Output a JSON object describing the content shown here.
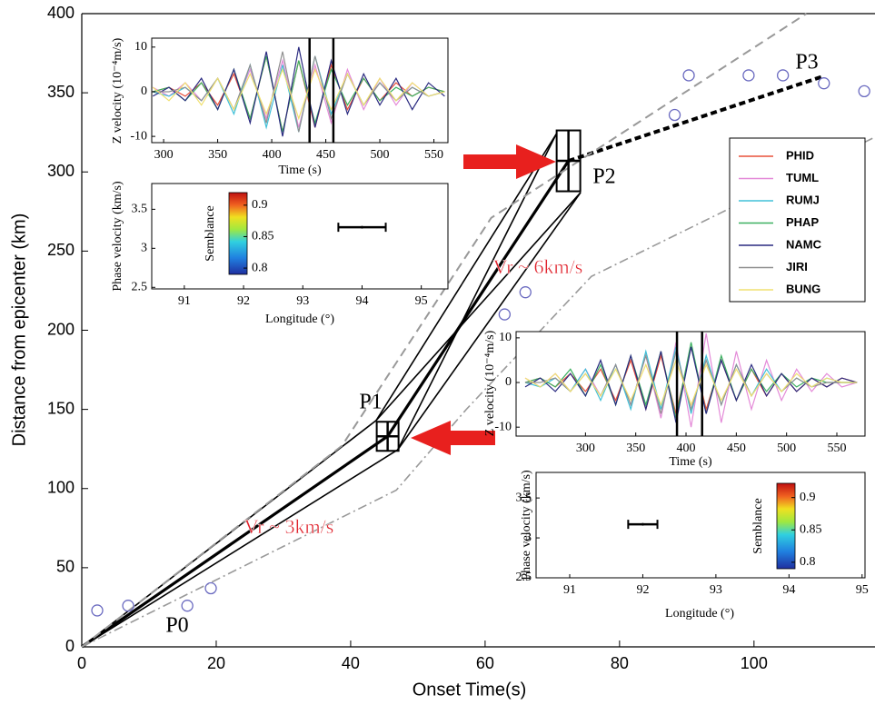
{
  "chart_data": [
    {
      "type": "line",
      "xlabel": "Onset Time(s)",
      "ylabel": "Distance from epicenter (km)",
      "xlim": [
        0,
        118
      ],
      "ylim": [
        0,
        400
      ],
      "xticks": [
        0,
        20,
        40,
        60,
        80,
        100
      ],
      "yticks": [
        0,
        50,
        100,
        150,
        200,
        250,
        300,
        350,
        400
      ],
      "points": {
        "color": "#6a6ac0",
        "x": [
          2.3,
          6.9,
          15.7,
          19.2,
          62.9,
          66,
          88.2,
          90.3,
          99.2,
          104.3,
          110.4,
          116.4
        ],
        "y": [
          23,
          26,
          26,
          37,
          210,
          224,
          336,
          361,
          361,
          361,
          356,
          351
        ]
      },
      "series": [
        {
          "color": "#000000",
          "style": "thick",
          "x": [
            0,
            45.5,
            72.4
          ],
          "values": [
            0,
            133,
            307
          ]
        },
        {
          "color": "#000000",
          "style": "bold-dashed",
          "x": [
            72.4,
            110
          ],
          "values": [
            307,
            360
          ]
        },
        {
          "color": "#000000",
          "style": "thin",
          "x": [
            0,
            43.8,
            74.2
          ],
          "values": [
            0,
            143,
            287
          ]
        },
        {
          "color": "#000000",
          "style": "thin",
          "x": [
            0,
            47,
            70.6
          ],
          "values": [
            0,
            124.5,
            324
          ]
        },
        {
          "color": "#000000",
          "style": "thin",
          "x": [
            43.8,
            70.6
          ],
          "values": [
            143,
            324
          ]
        },
        {
          "color": "#000000",
          "style": "thin",
          "x": [
            47,
            74.2
          ],
          "values": [
            124.5,
            287
          ]
        },
        {
          "color": "#999999",
          "style": "dashed",
          "x": [
            0,
            38.7,
            60.9,
            107.8
          ],
          "values": [
            0,
            127,
            271,
            400
          ]
        },
        {
          "color": "#999999",
          "style": "dash-dot",
          "x": [
            0,
            46.8,
            57.2,
            75.8,
            118
          ],
          "values": [
            0,
            99,
            150,
            234,
            322
          ]
        }
      ],
      "annotations": [
        {
          "text": "P0"
        },
        {
          "text": "P1"
        },
        {
          "text": "P2"
        },
        {
          "text": "P3"
        },
        {
          "text": "Vr ~ 3km/s",
          "color": "#e0202a"
        },
        {
          "text": "Vr ~ 6km/s",
          "color": "#e0202a"
        }
      ]
    },
    {
      "type": "line",
      "xlabel": "Time (s)",
      "ylabel": "Z velocity (10⁻⁴m/s)",
      "xlim": [
        289,
        563
      ],
      "ylim": [
        -11.4,
        12
      ],
      "xticks": [
        300,
        350,
        400,
        450,
        500,
        550
      ],
      "yticks": [
        -10,
        0,
        10
      ],
      "window": [
        435,
        457
      ],
      "x": [
        290,
        305,
        320,
        335,
        350,
        365,
        380,
        395,
        410,
        425,
        440,
        455,
        470,
        485,
        500,
        515,
        530,
        545,
        560
      ],
      "series": [
        {
          "name": "PHID",
          "color": "#e8503a",
          "values": [
            0,
            1,
            -1,
            2,
            -3,
            4,
            -6,
            8,
            -9,
            7,
            -8,
            6,
            -4,
            3,
            -2,
            2,
            -1,
            1,
            0
          ]
        },
        {
          "name": "TUML",
          "color": "#e48ad8",
          "values": [
            1,
            -1,
            2,
            -2,
            3,
            -4,
            5,
            -6,
            7,
            -8,
            6,
            -7,
            5,
            -4,
            3,
            -3,
            2,
            -1,
            0
          ]
        },
        {
          "name": "RUMJ",
          "color": "#40c0d8",
          "values": [
            0,
            -1,
            1,
            -2,
            3,
            -5,
            6,
            -8,
            6,
            -9,
            8,
            -5,
            4,
            -3,
            2,
            -2,
            1,
            -1,
            0
          ]
        },
        {
          "name": "PHAP",
          "color": "#3cb060",
          "values": [
            0,
            1,
            -2,
            2,
            -4,
            5,
            -6,
            8,
            -9,
            7,
            -7,
            5,
            -3,
            3,
            -2,
            1,
            -1,
            1,
            0
          ]
        },
        {
          "name": "NAMC",
          "color": "#2a2a80",
          "values": [
            -1,
            1,
            -2,
            3,
            -4,
            5,
            -7,
            9,
            -10,
            10,
            -8,
            7,
            -5,
            4,
            -3,
            3,
            -4,
            2,
            -1
          ]
        },
        {
          "name": "JIRI",
          "color": "#909090",
          "values": [
            0,
            0,
            1,
            -2,
            3,
            -4,
            6,
            -7,
            9,
            -9,
            8,
            -6,
            4,
            -3,
            2,
            -2,
            1,
            -1,
            0
          ]
        },
        {
          "name": "BUNG",
          "color": "#f0e070",
          "values": [
            1,
            -2,
            2,
            -3,
            3,
            -4,
            4,
            -5,
            5,
            -6,
            5,
            -4,
            4,
            -3,
            3,
            -2,
            2,
            -1,
            0
          ]
        }
      ]
    },
    {
      "type": "contour",
      "xlabel": "Longitude (°)",
      "ylabel": "Phase velocity (km/s)",
      "clabel": "Semblance",
      "xlim": [
        90.45,
        95.45
      ],
      "ylim": [
        2.48,
        3.83
      ],
      "xticks": [
        91,
        92,
        93,
        94,
        95
      ],
      "yticks": [
        2.5,
        3,
        3.5
      ],
      "clim": [
        0.79,
        0.92
      ],
      "cticks": [
        0.8,
        0.85,
        0.9
      ],
      "peak": {
        "x": 94.0,
        "y": 3.27,
        "x_low": 93.6,
        "x_high": 94.4
      }
    },
    {
      "type": "line",
      "xlabel": "Time (s)",
      "ylabel": "Z velocity (10⁻⁴m/s)",
      "xlim": [
        231,
        578
      ],
      "ylim": [
        -12,
        11.4
      ],
      "xticks": [
        300,
        350,
        400,
        450,
        500,
        550
      ],
      "yticks": [
        -10,
        0,
        10
      ],
      "window": [
        391,
        416
      ],
      "x": [
        240,
        255,
        270,
        285,
        300,
        315,
        330,
        345,
        360,
        375,
        390,
        405,
        420,
        435,
        450,
        465,
        480,
        495,
        510,
        525,
        540,
        555,
        570
      ],
      "series": [
        {
          "color": "#e8503a",
          "values": [
            0,
            1,
            -1,
            2,
            -2,
            3,
            -4,
            5,
            -6,
            6,
            -7,
            8,
            -6,
            5,
            -4,
            3,
            -3,
            2,
            -2,
            1,
            -1,
            1,
            0
          ]
        },
        {
          "color": "#e48ad8",
          "values": [
            1,
            -1,
            2,
            -2,
            3,
            -3,
            4,
            -5,
            6,
            -8,
            9,
            -10,
            11,
            -9,
            7,
            -6,
            5,
            -4,
            3,
            -2,
            2,
            -1,
            0
          ]
        },
        {
          "color": "#40c0d8",
          "values": [
            0,
            -1,
            1,
            -2,
            3,
            -4,
            4,
            -6,
            7,
            -6,
            8,
            -7,
            6,
            -5,
            4,
            -3,
            3,
            -2,
            1,
            -1,
            1,
            0,
            0
          ]
        },
        {
          "color": "#3cb060",
          "values": [
            0,
            1,
            -1,
            3,
            -3,
            4,
            -5,
            6,
            -5,
            7,
            -8,
            9,
            -7,
            6,
            -4,
            3,
            -2,
            2,
            -1,
            1,
            0,
            0,
            0
          ]
        },
        {
          "color": "#2a2a80",
          "values": [
            -1,
            1,
            -2,
            2,
            -3,
            5,
            -5,
            6,
            -6,
            7,
            -9,
            8,
            -7,
            5,
            -4,
            4,
            -3,
            2,
            -2,
            1,
            -1,
            1,
            0
          ]
        },
        {
          "color": "#909090",
          "values": [
            0,
            0,
            1,
            -2,
            2,
            -3,
            4,
            -5,
            6,
            -7,
            7,
            -6,
            5,
            -5,
            4,
            -3,
            2,
            -2,
            1,
            -1,
            0,
            0,
            0
          ]
        },
        {
          "color": "#f0e070",
          "values": [
            1,
            -1,
            2,
            -2,
            2,
            -3,
            3,
            -4,
            4,
            -5,
            5,
            -5,
            4,
            -4,
            3,
            -3,
            2,
            -2,
            2,
            -1,
            1,
            0,
            0
          ]
        }
      ]
    },
    {
      "type": "contour",
      "xlabel": "Longitude (°)",
      "ylabel": "Phase velocity (km/s)",
      "clabel": "Semblance",
      "xlim": [
        90.54,
        95.04
      ],
      "ylim": [
        2.5,
        3.82
      ],
      "xticks": [
        91,
        92,
        93,
        94,
        95
      ],
      "yticks": [
        2.5,
        3,
        3.5
      ],
      "clim": [
        0.79,
        0.922
      ],
      "cticks": [
        0.8,
        0.85,
        0.9
      ],
      "peak": {
        "x": 92.0,
        "y": 3.17,
        "x_low": 91.8,
        "x_high": 92.2
      }
    }
  ]
}
